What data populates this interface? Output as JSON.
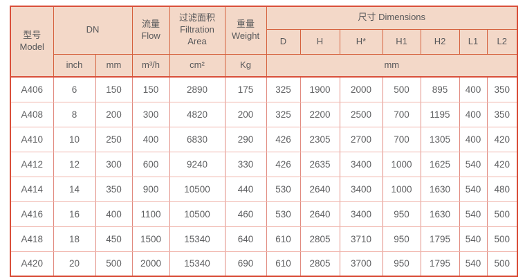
{
  "colors": {
    "header_bg": "#f3d8c8",
    "header_grid": "#d5603c",
    "outer_border": "#d94f3a",
    "body_grid_vertical": "#e18a7f",
    "body_grid_horizontal": "#f0b4ab",
    "header_text": "#57585a",
    "body_text": "#5f6062"
  },
  "table": {
    "header": {
      "model_zh": "型号",
      "model_en": "Model",
      "dn": "DN",
      "flow_zh": "流量",
      "flow_en": "Flow",
      "filtration_zh": "过滤面积",
      "filtration_en_1": "Filtration",
      "filtration_en_2": "Area",
      "weight_zh": "重量",
      "weight_en": "Weight",
      "dimensions": "尺寸 Dimensions",
      "dimension_cols": [
        "D",
        "H",
        "H*",
        "H1",
        "H2",
        "L1",
        "L2"
      ]
    },
    "units": {
      "dn_inch": "inch",
      "dn_mm": "mm",
      "flow": "m³/h",
      "filtration": "cm²",
      "weight": "Kg",
      "dimensions": "mm"
    },
    "rows": [
      [
        "A406",
        "6",
        "150",
        "150",
        "2890",
        "175",
        "325",
        "1900",
        "2000",
        "500",
        "895",
        "400",
        "350"
      ],
      [
        "A408",
        "8",
        "200",
        "300",
        "4820",
        "200",
        "325",
        "2200",
        "2500",
        "700",
        "1195",
        "400",
        "350"
      ],
      [
        "A410",
        "10",
        "250",
        "400",
        "6830",
        "290",
        "426",
        "2305",
        "2700",
        "700",
        "1305",
        "400",
        "420"
      ],
      [
        "A412",
        "12",
        "300",
        "600",
        "9240",
        "330",
        "426",
        "2635",
        "3400",
        "1000",
        "1625",
        "540",
        "420"
      ],
      [
        "A414",
        "14",
        "350",
        "900",
        "10500",
        "440",
        "530",
        "2640",
        "3400",
        "1000",
        "1630",
        "540",
        "480"
      ],
      [
        "A416",
        "16",
        "400",
        "1100",
        "10500",
        "460",
        "530",
        "2640",
        "3400",
        "950",
        "1630",
        "540",
        "500"
      ],
      [
        "A418",
        "18",
        "450",
        "1500",
        "15340",
        "640",
        "610",
        "2805",
        "3710",
        "950",
        "1795",
        "540",
        "500"
      ],
      [
        "A420",
        "20",
        "500",
        "2000",
        "15340",
        "690",
        "610",
        "2805",
        "3700",
        "950",
        "1795",
        "540",
        "500"
      ]
    ]
  }
}
